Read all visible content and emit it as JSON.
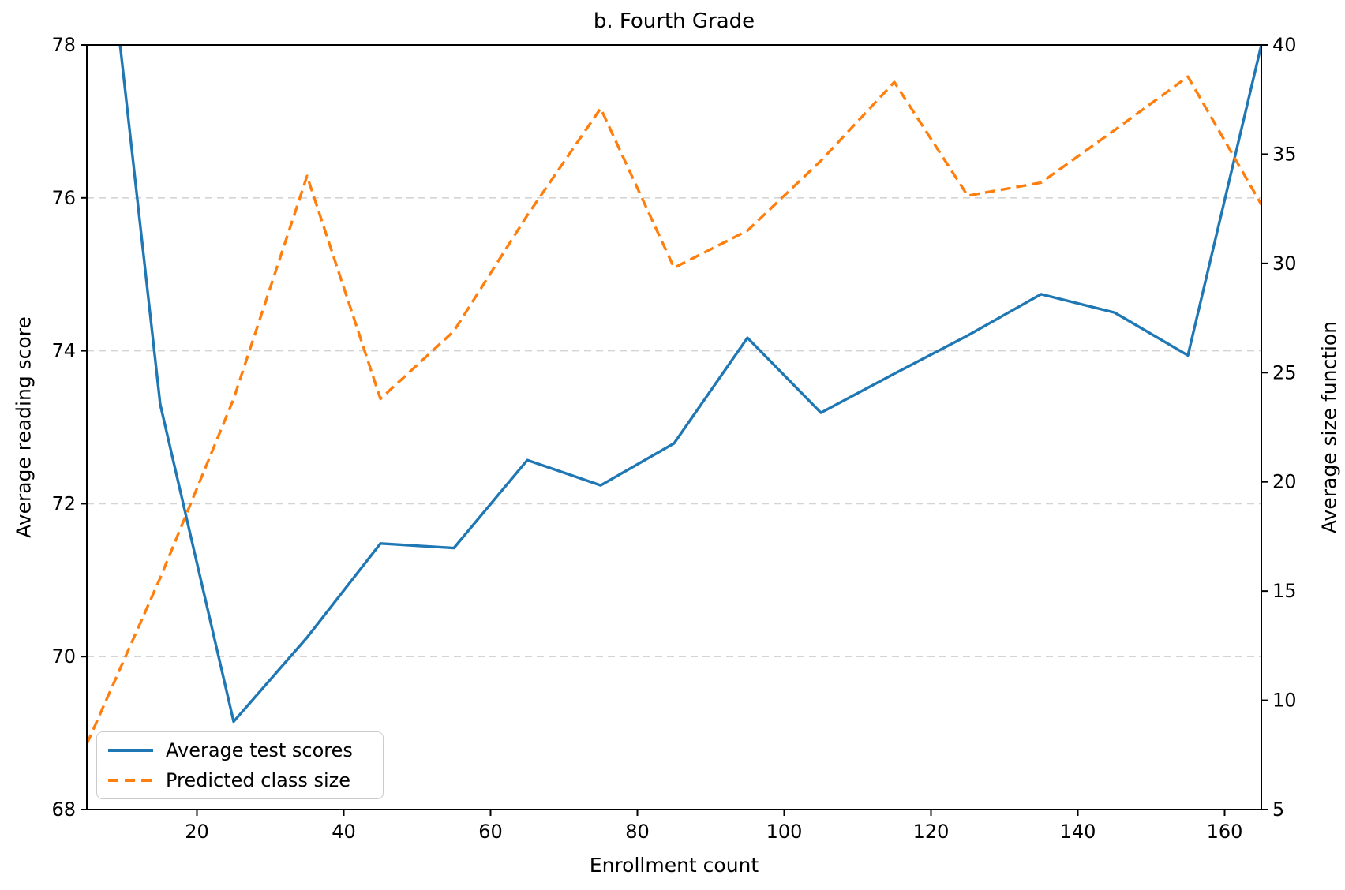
{
  "figure": {
    "title": "b. Fourth Grade",
    "xlabel": "Enrollment count",
    "ylabel_left": "Average reading score",
    "ylabel_right": "Average size function",
    "background_color": "#ffffff",
    "text_color": "#000000",
    "spine_color": "#000000"
  },
  "legend": {
    "position": "lower-left",
    "items": [
      {
        "label": "Average test scores",
        "color": "#1f77b4",
        "style": "solid"
      },
      {
        "label": "Predicted class size",
        "color": "#ff7f0e",
        "style": "dashed"
      }
    ]
  },
  "chart_data": {
    "type": "line",
    "title": "b. Fourth Grade",
    "xlabel": "Enrollment count",
    "x": [
      5,
      15,
      25,
      35,
      45,
      55,
      65,
      75,
      85,
      95,
      105,
      115,
      125,
      135,
      145,
      155,
      165
    ],
    "series": [
      {
        "name": "Average test scores",
        "axis": "left",
        "color": "#1f77b4",
        "style": "solid",
        "values": [
          81.9,
          73.3,
          69.15,
          70.25,
          71.48,
          71.42,
          72.57,
          72.24,
          72.79,
          74.17,
          73.19,
          73.7,
          74.2,
          74.74,
          74.5,
          73.94,
          78.0
        ]
      },
      {
        "name": "Predicted class size",
        "axis": "right",
        "color": "#ff7f0e",
        "style": "dashed",
        "values": [
          8.0,
          15.6,
          23.8,
          34.0,
          23.8,
          26.9,
          32.2,
          37.1,
          29.8,
          31.5,
          34.7,
          38.3,
          33.1,
          33.7,
          36.1,
          38.55,
          32.7
        ]
      }
    ],
    "axes": {
      "x": {
        "min": 5,
        "max": 165,
        "ticks": [
          20,
          40,
          60,
          80,
          100,
          120,
          140,
          160
        ]
      },
      "y_left": {
        "label": "Average reading score",
        "min": 68,
        "max": 78,
        "ticks": [
          68,
          70,
          72,
          74,
          76,
          78
        ]
      },
      "y_right": {
        "label": "Average size function",
        "min": 5,
        "max": 40,
        "ticks": [
          5,
          10,
          15,
          20,
          25,
          30,
          35,
          40
        ]
      }
    },
    "grid": {
      "on": true,
      "axis": "y_left",
      "values": [
        70,
        72,
        74,
        76
      ],
      "color": "#d4d4d4",
      "dashed": true
    },
    "legend_position": "lower-left"
  }
}
